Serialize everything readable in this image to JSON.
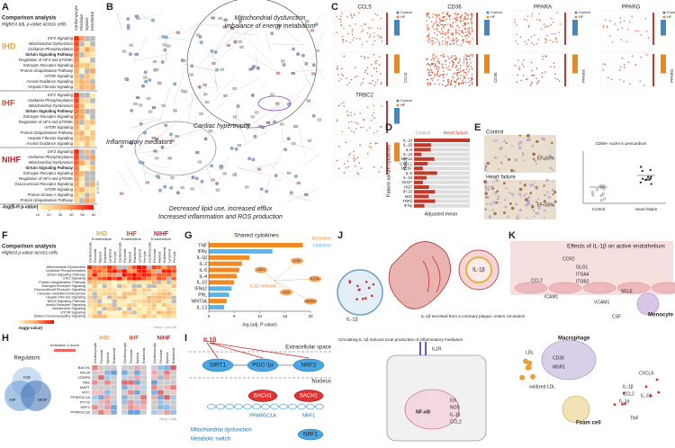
{
  "panels": {
    "a": {
      "label": "A",
      "title": "Comparison analysis",
      "subtitle": "Highest adj. p-value across cells",
      "columns": [
        "Cardiomyocyte",
        "Fibroblast",
        "Myeloid",
        "Endothelial"
      ],
      "groups": [
        {
          "name": "IHD",
          "rows": [
            "EIF2 Signaling",
            "Mitochondrial Dysfunction",
            "Oxidative Phosphorylation",
            "Sirtuin Signaling Pathway",
            "Regulation of eIF4 and p70S6K",
            "Estrogen Receptor Signaling",
            "Protein Ubiquitination Pathway",
            "mTOR Signaling",
            "Axonal Guidance Signaling",
            "Hepatic Fibrosis Signaling"
          ]
        },
        {
          "name": "IHF",
          "rows": [
            "EIF2 Signaling",
            "Oxidative Phosphorylation",
            "Mitochondrial Dysfunction",
            "Sirtuin Signaling Pathway",
            "Estrogen Receptor Signaling",
            "Regulation of eIF4 and p70S6K",
            "mTOR Signaling",
            "Protein Ubiquitination Pathway",
            "Hepatic Fibrosis Signaling",
            "Axonal Guidance Signaling"
          ]
        },
        {
          "name": "NIHF",
          "rows": [
            "EIF2 Signaling",
            "Oxidative Phosphorylation",
            "Mitochondrial Dysfunction",
            "Sirtuin Signaling Pathway",
            "Estrogen Receptor Signaling",
            "Regulation of eIF4 and p70S6K",
            "Glucocorticoid Receptor Signaling",
            "mTOR Signaling",
            "Protein Kinase A Signaling",
            "Protein Ubiquitination Pathway"
          ]
        }
      ],
      "note": "p<0.05",
      "legend_title": "-log(B-H p-value)",
      "legend_ticks": [
        10,
        20,
        30,
        40,
        50,
        60
      ]
    },
    "b": {
      "label": "B",
      "texts": [
        "Mitochondrial dysfunction",
        "Imbalance of energy metabolism",
        "Cardiac hypertrophy",
        "Inflammatory mediators",
        "Decreased lipid use, increased efflux",
        "Increased inflammation and ROS production"
      ]
    },
    "c": {
      "label": "C",
      "genes": [
        "CCL5",
        "CD36",
        "PPARA",
        "PPARG",
        "TRBC2"
      ],
      "legend": [
        "Control",
        "HF"
      ]
    },
    "d": {
      "label": "D",
      "axis_title": "Patient serum cytokines",
      "x_title": "Adjusted mean",
      "legend": [
        "Control",
        "Heart failure"
      ],
      "cytokines": [
        "IL-1α",
        "IL-1β",
        "IL-6",
        "IL-18",
        "MIP1α",
        "CXCL1",
        "MCSF",
        "IL-5",
        "IL-16",
        "VEGF",
        "HGF",
        "IP-10",
        "MIG",
        "TNFβ",
        "IFNγ"
      ]
    },
    "e": {
      "label": "E",
      "images": [
        "Control",
        "Heart failure"
      ],
      "ef": [
        "EF≥50%",
        "EF<50%"
      ],
      "plot_title": "CD68+ nuclei in pericardium",
      "groups": [
        "Control",
        "Heart failure"
      ]
    },
    "f": {
      "label": "F",
      "title": "Comparison analysis",
      "subtitle": "Highest p-value across cells",
      "groups": [
        "IHD",
        "IHF",
        "NIHF"
      ],
      "cell_title": "Endothelium",
      "columns": [
        "Cardiomyocyte",
        "Fibroblast",
        "Myeloid",
        "Endothelial",
        "Lymphoid",
        "Pericyte"
      ],
      "rows": [
        "Mitochondrial Dysfunction",
        "Oxidative Phosphorylation",
        "Sirtuin Signaling Pathway",
        "EIF2 Signaling",
        "Protein Ubiquitination Pathway",
        "Estrogen Receptor Signaling",
        "Glucocorticoid Receptor Signaling",
        "Caveolar-mediated Endocytosis",
        "Hepatic Fibrosis Signaling",
        "BAG2 Signaling Pathway",
        "Insulin Receptor Signaling",
        "Aldosterone Signaling",
        "mTOR Signaling",
        "Dilated Cardiomyopathy Signaling"
      ],
      "legend_title": "-log(p-value)",
      "note": "Grey = p>0.05"
    },
    "g": {
      "label": "G",
      "title": "Shared cytokines",
      "categories": [
        "TNF",
        "IFNγ",
        "IL-1β",
        "IL-2",
        "IL-6",
        "IL-4",
        "IL-10",
        "IFNα2",
        "PRL",
        "WNT3A",
        "IL-13"
      ],
      "values": [
        18.5,
        12.5,
        8,
        6.5,
        6,
        5.5,
        5,
        4.5,
        4,
        3.5,
        3
      ],
      "colors": [
        "#f08a24",
        "#5ab4e5",
        "#f08a24",
        "#f08a24",
        "#f08a24",
        "#f08a24",
        "#f08a24",
        "#5ab4e5",
        "#5ab4e5",
        "#f08a24",
        "#5ab4e5"
      ],
      "xlim": [
        0,
        20
      ],
      "xticks": [
        0,
        5,
        10,
        15,
        20
      ],
      "x_title": "-log (adj. P-value)",
      "legend": [
        "Activation",
        "Inhibition"
      ],
      "network_title": "IL1β network",
      "nodes": [
        "CSF2",
        "IL1A",
        "IL17A",
        "IL33",
        "CD40LG"
      ]
    },
    "h": {
      "label": "H",
      "title": "Regulators",
      "venn": [
        "IHD",
        "IHF",
        "NIHF"
      ],
      "groups": [
        "IHD",
        "IHF",
        "NIHF"
      ],
      "columns": [
        "Cardiomyocyte",
        "Fibroblast",
        "Myeloid",
        "Endothelial"
      ],
      "z_title": "Activation Z-score",
      "rows": [
        "BACH1",
        "HIF1A",
        "CEBPB",
        "RB1",
        "MAPT",
        "MYC",
        "PPARGC1A",
        "PITX2",
        "NRF1",
        "PPARGC1B"
      ],
      "note": "Grey = NA"
    },
    "i": {
      "label": "I",
      "ligand": "IL1β",
      "space": "Extracellular space",
      "nucleus": "Nucleus",
      "nodes": [
        "SIRT1",
        "PGC-1α",
        "NRF2",
        "BACH1",
        "BACH1",
        "NRF1"
      ],
      "genes": [
        "PPARGC1A",
        "NRF1"
      ],
      "outcome": [
        "Mitochondrial dysfunction",
        "Metabolic switch"
      ]
    },
    "j": {
      "label": "J",
      "texts": [
        "IL-1β",
        "IL-1β secreted from a coronary plaque: enters circulation",
        "Circulating IL-1β induces local production of inflammatory mediators",
        "IL1R",
        "NF-κB",
        "IL6",
        "NOS",
        "IL-1β",
        "CCL2"
      ]
    },
    "k": {
      "label": "K",
      "title": "Effects of IL-1β on active endothelium",
      "texts": [
        "CCR2",
        "GLG1",
        "ITGA4",
        "ITGB2",
        "CCL2",
        "ICAM1",
        "VCAM1",
        "SELE",
        "Monocyte",
        "CSF",
        "LDL",
        "oxidized LDL",
        "Macrophage",
        "CD36",
        "MSR1",
        "Foam cell",
        "CXCL8",
        "IL-1β",
        "CCL2",
        "IL-33",
        "IL-1α",
        "TNF"
      ]
    }
  }
}
